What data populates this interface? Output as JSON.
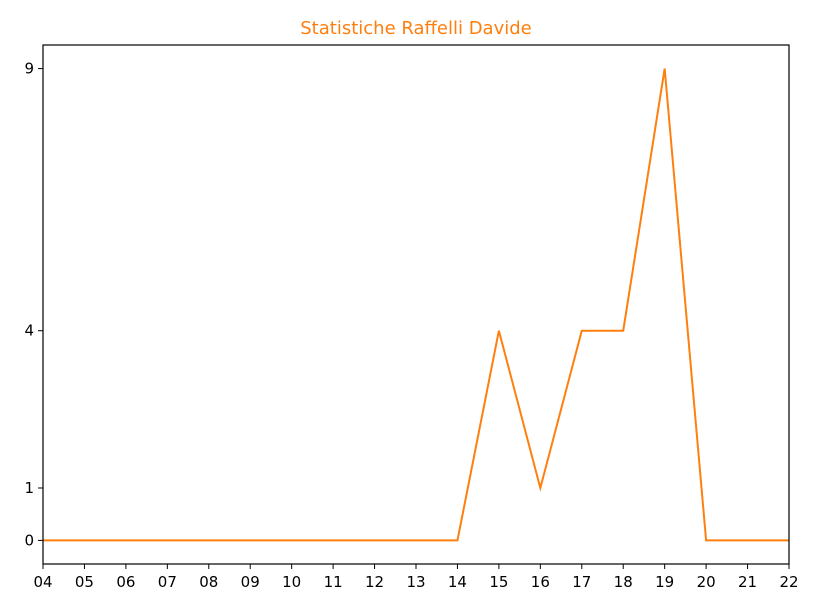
{
  "chart_data": {
    "type": "line",
    "title": "Statistiche Raffelli Davide",
    "title_color": "#ff7f0e",
    "line_color": "#ff7f0e",
    "xlabel": "",
    "ylabel": "",
    "categories": [
      "04",
      "05",
      "06",
      "07",
      "08",
      "09",
      "10",
      "11",
      "12",
      "13",
      "14",
      "15",
      "16",
      "17",
      "18",
      "19",
      "20",
      "21",
      "22"
    ],
    "values": [
      0,
      0,
      0,
      0,
      0,
      0,
      0,
      0,
      0,
      0,
      0,
      4,
      1,
      4,
      4,
      9,
      0,
      0,
      0
    ],
    "y_ticks": [
      0,
      1,
      4,
      9
    ],
    "ylim": [
      -0.45,
      9.45
    ],
    "grid": false,
    "legend": "none"
  }
}
